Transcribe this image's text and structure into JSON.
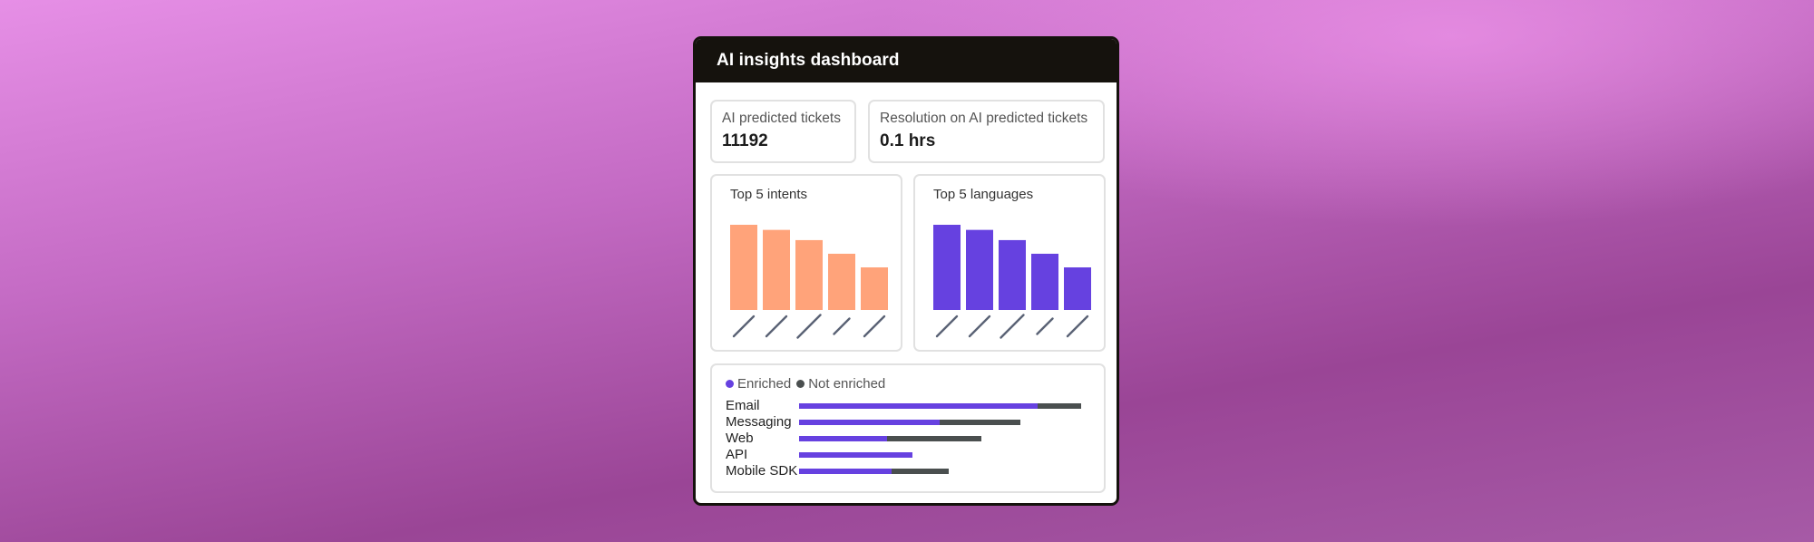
{
  "dashboard": {
    "title": "AI insights dashboard"
  },
  "stats": [
    {
      "label": "AI predicted tickets",
      "value": "11192"
    },
    {
      "label": "Resolution on AI predicted tickets",
      "value": "0.1 hrs"
    }
  ],
  "chart_data": [
    {
      "type": "bar",
      "title": "Top 5 intents",
      "categories": [
        "",
        "",
        "",
        "",
        ""
      ],
      "values": [
        100,
        94,
        82,
        66,
        50
      ],
      "color": "#ffa37a"
    },
    {
      "type": "bar",
      "title": "Top 5 languages",
      "categories": [
        "",
        "",
        "",
        "",
        ""
      ],
      "values": [
        100,
        94,
        82,
        66,
        50
      ],
      "color": "#6641e0"
    },
    {
      "type": "bar",
      "orientation": "horizontal",
      "stacked": true,
      "categories": [
        "Email",
        "Messaging",
        "Web",
        "API",
        "Mobile SDK"
      ],
      "series": [
        {
          "name": "Enriched",
          "values": [
            263,
            155,
            97,
            125,
            102
          ],
          "color": "#6641e0"
        },
        {
          "name": "Not enriched",
          "values": [
            48,
            89,
            104,
            0,
            63
          ],
          "color": "#4a4f4f"
        }
      ]
    }
  ],
  "colors": {
    "header_bg": "#15120d",
    "enriched": "#6641e0",
    "not_enriched": "#4a4f4f",
    "intents": "#ffa37a"
  }
}
